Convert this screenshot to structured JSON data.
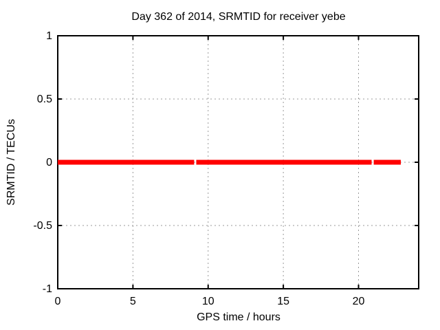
{
  "figure": {
    "title": "Day 362 of 2014, SRMTID for receiver yebe",
    "xlabel": "GPS time / hours",
    "ylabel": "SRMTID / TECUs"
  },
  "chart_data": {
    "type": "line",
    "title": "Day 362 of 2014, SRMTID for receiver yebe",
    "xlabel": "GPS time / hours",
    "ylabel": "SRMTID / TECUs",
    "xlim": [
      0,
      24
    ],
    "ylim": [
      -1,
      1
    ],
    "xticks": [
      0,
      5,
      10,
      15,
      20
    ],
    "yticks": [
      -1,
      -0.5,
      0,
      0.5,
      1
    ],
    "grid": true,
    "legend": "none",
    "series": [
      {
        "name": "SRMTID",
        "color": "#ff0000",
        "line_width": 7,
        "y": 0,
        "segments_hours": [
          [
            0,
            9.07
          ],
          [
            9.21,
            20.87
          ],
          [
            21.01,
            22.81
          ]
        ]
      }
    ],
    "colors": {
      "background": "#ffffff",
      "border": "#000000",
      "grid": "#999999",
      "text": "#000000",
      "series": "#ff0000"
    }
  }
}
